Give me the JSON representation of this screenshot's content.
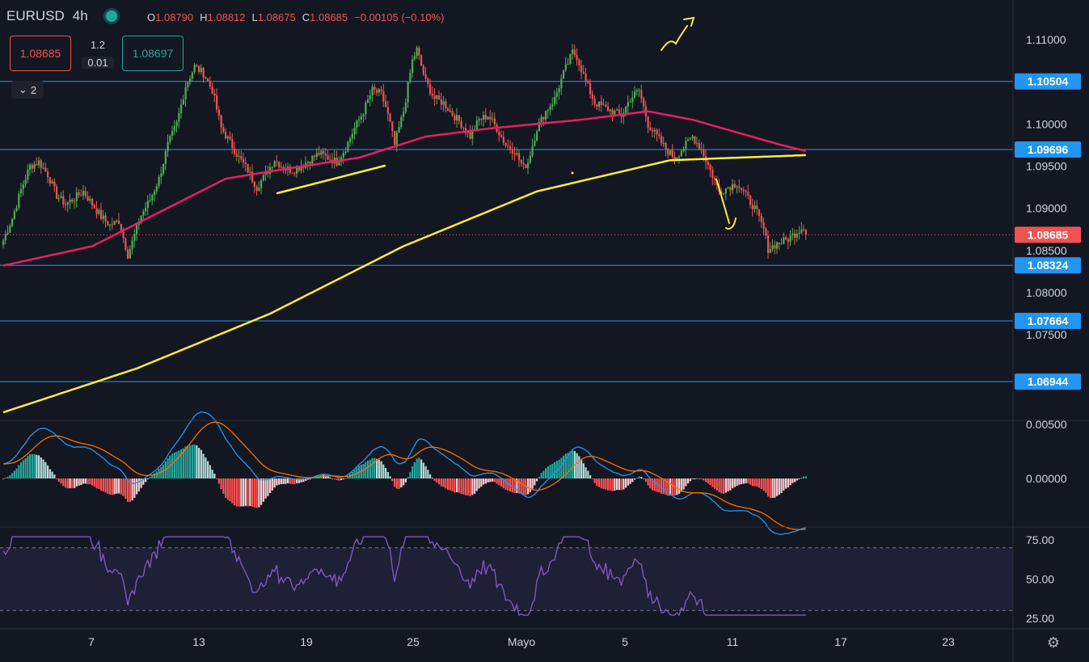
{
  "header": {
    "symbol": "EURUSD",
    "timeframe": "4h",
    "ohlc": {
      "o_label": "O",
      "o": "1.08790",
      "h_label": "H",
      "h": "1.08812",
      "l_label": "L",
      "l": "1.08675",
      "c_label": "C",
      "c": "1.08685",
      "change": "−0.00105 (−0.10%)"
    }
  },
  "trade": {
    "sell_price": "1.08685",
    "buy_price": "1.08697",
    "spread": "1.2",
    "lot": "0.01"
  },
  "collapse_label": "2",
  "price_axis": {
    "ticks": [
      "1.11000",
      "1.10000",
      "1.09500",
      "1.09000",
      "1.08500",
      "1.08000",
      "1.07500"
    ],
    "hline_labels": [
      "1.10504",
      "1.09696",
      "1.08324",
      "1.07664",
      "1.06944"
    ],
    "last_price": "1.08685"
  },
  "macd_axis": {
    "ticks": [
      "0.00500",
      "0.00000"
    ]
  },
  "rsi_axis": {
    "ticks": [
      "75.00",
      "50.00",
      "25.00"
    ]
  },
  "time_axis": {
    "ticks": [
      "7",
      "13",
      "19",
      "25",
      "Mayo",
      "5",
      "11",
      "17",
      "23"
    ]
  },
  "colors": {
    "background": "#131722",
    "up": "#4caf50",
    "down": "#ef5350",
    "hline": "#2196f3",
    "ma_fast": "#e91e63",
    "ma_slow": "#ffeb3b",
    "macd": "#2196f3",
    "signal": "#ff6d00",
    "rsi": "#7e57c2",
    "drawing": "#ffeb3b"
  },
  "icons": {
    "status": "live-dot-icon",
    "settings": "gear-icon",
    "collapse": "chevron-down-icon"
  },
  "chart_data": {
    "type": "candlestick",
    "symbol": "EURUSD",
    "interval": "4h",
    "horizontal_levels": [
      1.10504,
      1.09696,
      1.08324,
      1.07664,
      1.06944
    ],
    "last_price": 1.08685,
    "price_range": [
      1.0652,
      1.1138
    ],
    "close_path": [
      [
        0,
        1.0862
      ],
      [
        4,
        1.0888
      ],
      [
        8,
        1.0922
      ],
      [
        12,
        1.095
      ],
      [
        16,
        1.0955
      ],
      [
        20,
        1.094
      ],
      [
        24,
        1.0915
      ],
      [
        28,
        1.0905
      ],
      [
        32,
        1.0912
      ],
      [
        36,
        1.092
      ],
      [
        40,
        1.0905
      ],
      [
        44,
        1.089
      ],
      [
        48,
        1.088
      ],
      [
        52,
        1.0885
      ],
      [
        56,
        1.0845
      ],
      [
        58,
        1.086
      ],
      [
        62,
        1.0892
      ],
      [
        66,
        1.091
      ],
      [
        70,
        1.0935
      ],
      [
        74,
        1.0975
      ],
      [
        78,
        1.1
      ],
      [
        82,
        1.1045
      ],
      [
        86,
        1.1068
      ],
      [
        90,
        1.106
      ],
      [
        94,
        1.104
      ],
      [
        98,
        1.0995
      ],
      [
        102,
        1.0978
      ],
      [
        106,
        1.096
      ],
      [
        110,
        1.0945
      ],
      [
        114,
        1.0925
      ],
      [
        118,
        1.094
      ],
      [
        122,
        1.0958
      ],
      [
        126,
        1.0948
      ],
      [
        130,
        1.0945
      ],
      [
        134,
        1.095
      ],
      [
        138,
        1.0958
      ],
      [
        142,
        1.0965
      ],
      [
        146,
        1.096
      ],
      [
        150,
        1.0955
      ],
      [
        154,
        1.0972
      ],
      [
        158,
        1.0995
      ],
      [
        162,
        1.1015
      ],
      [
        166,
        1.104
      ],
      [
        170,
        1.1035
      ],
      [
        172,
        1.102
      ],
      [
        174,
        1.1
      ],
      [
        176,
        1.0975
      ],
      [
        180,
        1.1015
      ],
      [
        184,
        1.1075
      ],
      [
        186,
        1.1088
      ],
      [
        190,
        1.105
      ],
      [
        194,
        1.103
      ],
      [
        198,
        1.1025
      ],
      [
        202,
        1.1012
      ],
      [
        206,
        1.1
      ],
      [
        210,
        1.0985
      ],
      [
        214,
        1.1005
      ],
      [
        218,
        1.101
      ],
      [
        222,
        1.0995
      ],
      [
        226,
        1.0975
      ],
      [
        230,
        1.0968
      ],
      [
        234,
        1.0948
      ],
      [
        236,
        1.0955
      ],
      [
        240,
        1.0995
      ],
      [
        244,
        1.1015
      ],
      [
        248,
        1.103
      ],
      [
        252,
        1.106
      ],
      [
        256,
        1.1085
      ],
      [
        258,
        1.108
      ],
      [
        262,
        1.105
      ],
      [
        266,
        1.1025
      ],
      [
        270,
        1.102
      ],
      [
        274,
        1.1015
      ],
      [
        278,
        1.101
      ],
      [
        282,
        1.103
      ],
      [
        286,
        1.104
      ],
      [
        290,
        1.1
      ],
      [
        294,
        1.0985
      ],
      [
        298,
        1.097
      ],
      [
        302,
        1.096
      ],
      [
        306,
        1.0972
      ],
      [
        310,
        1.0985
      ],
      [
        314,
        1.097
      ],
      [
        318,
        1.0945
      ],
      [
        322,
        1.092
      ],
      [
        326,
        1.0925
      ],
      [
        330,
        1.093
      ],
      [
        334,
        1.0915
      ],
      [
        338,
        1.09
      ],
      [
        342,
        1.0875
      ],
      [
        344,
        1.0852
      ],
      [
        348,
        1.0858
      ],
      [
        352,
        1.0862
      ],
      [
        356,
        1.087
      ],
      [
        360,
        1.0879
      ],
      [
        361,
        1.08685
      ]
    ],
    "ma_slow_path": [
      [
        0,
        1.0658
      ],
      [
        60,
        1.071
      ],
      [
        120,
        1.0775
      ],
      [
        180,
        1.0855
      ],
      [
        240,
        1.092
      ],
      [
        300,
        1.0957
      ],
      [
        361,
        1.0963
      ]
    ],
    "ma_fast_path": [
      [
        0,
        1.0832
      ],
      [
        40,
        1.0855
      ],
      [
        70,
        1.0895
      ],
      [
        100,
        1.0935
      ],
      [
        130,
        1.0948
      ],
      [
        160,
        1.096
      ],
      [
        190,
        1.0985
      ],
      [
        220,
        1.0995
      ],
      [
        260,
        1.1005
      ],
      [
        290,
        1.1015
      ],
      [
        310,
        1.1005
      ],
      [
        330,
        1.099
      ],
      [
        350,
        1.0975
      ],
      [
        361,
        1.0968
      ]
    ]
  }
}
